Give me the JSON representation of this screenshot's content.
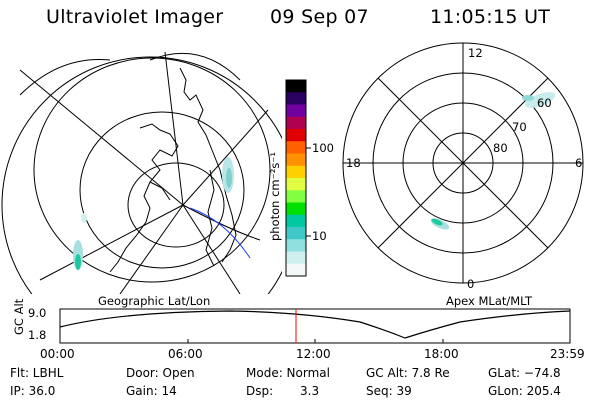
{
  "header": {
    "instrument": "Ultraviolet Imager",
    "date": "09 Sep 07",
    "time": "11:05:15 UT"
  },
  "colorbar": {
    "unit_label": "photon cm⁻²s⁻¹",
    "ticks": [
      "100",
      "10"
    ],
    "colors": [
      "#000000",
      "#2a0060",
      "#7000a0",
      "#b00050",
      "#e00000",
      "#ff6000",
      "#ff9000",
      "#ffd000",
      "#e0ff40",
      "#80ff40",
      "#00e000",
      "#00c8a0",
      "#40c8c8",
      "#90e0e0",
      "#d0f0f0",
      "#f4f8f8"
    ]
  },
  "left_map": {
    "caption": "Geographic Lat/Lon"
  },
  "right_map": {
    "caption": "Apex MLat/MLT",
    "mlt_labels": {
      "top": "12",
      "left": "18",
      "right": "6",
      "bottom": "0"
    },
    "lat_labels": [
      "60",
      "70",
      "80"
    ]
  },
  "altitude_plot": {
    "ylabel": "GC Alt",
    "yticks": [
      "9.0",
      "1.8"
    ],
    "xticks": [
      "00:00",
      "06:00",
      "12:00",
      "18:00",
      "23:59"
    ],
    "current_time_marker": "11:05",
    "marker_color": "#ff0000"
  },
  "info": {
    "flt": "Flt: LBHL",
    "ip": "IP: 36.0",
    "door": "Door: Open",
    "gain": "Gain: 14",
    "mode": "Mode: Normal",
    "dsp": "Dsp:",
    "dsp_val": "3.3",
    "gcalt": "GC Alt: 7.8 Re",
    "seq": "Seq: 39",
    "glat": "GLat: −74.8",
    "glon": "GLon: 205.4"
  }
}
